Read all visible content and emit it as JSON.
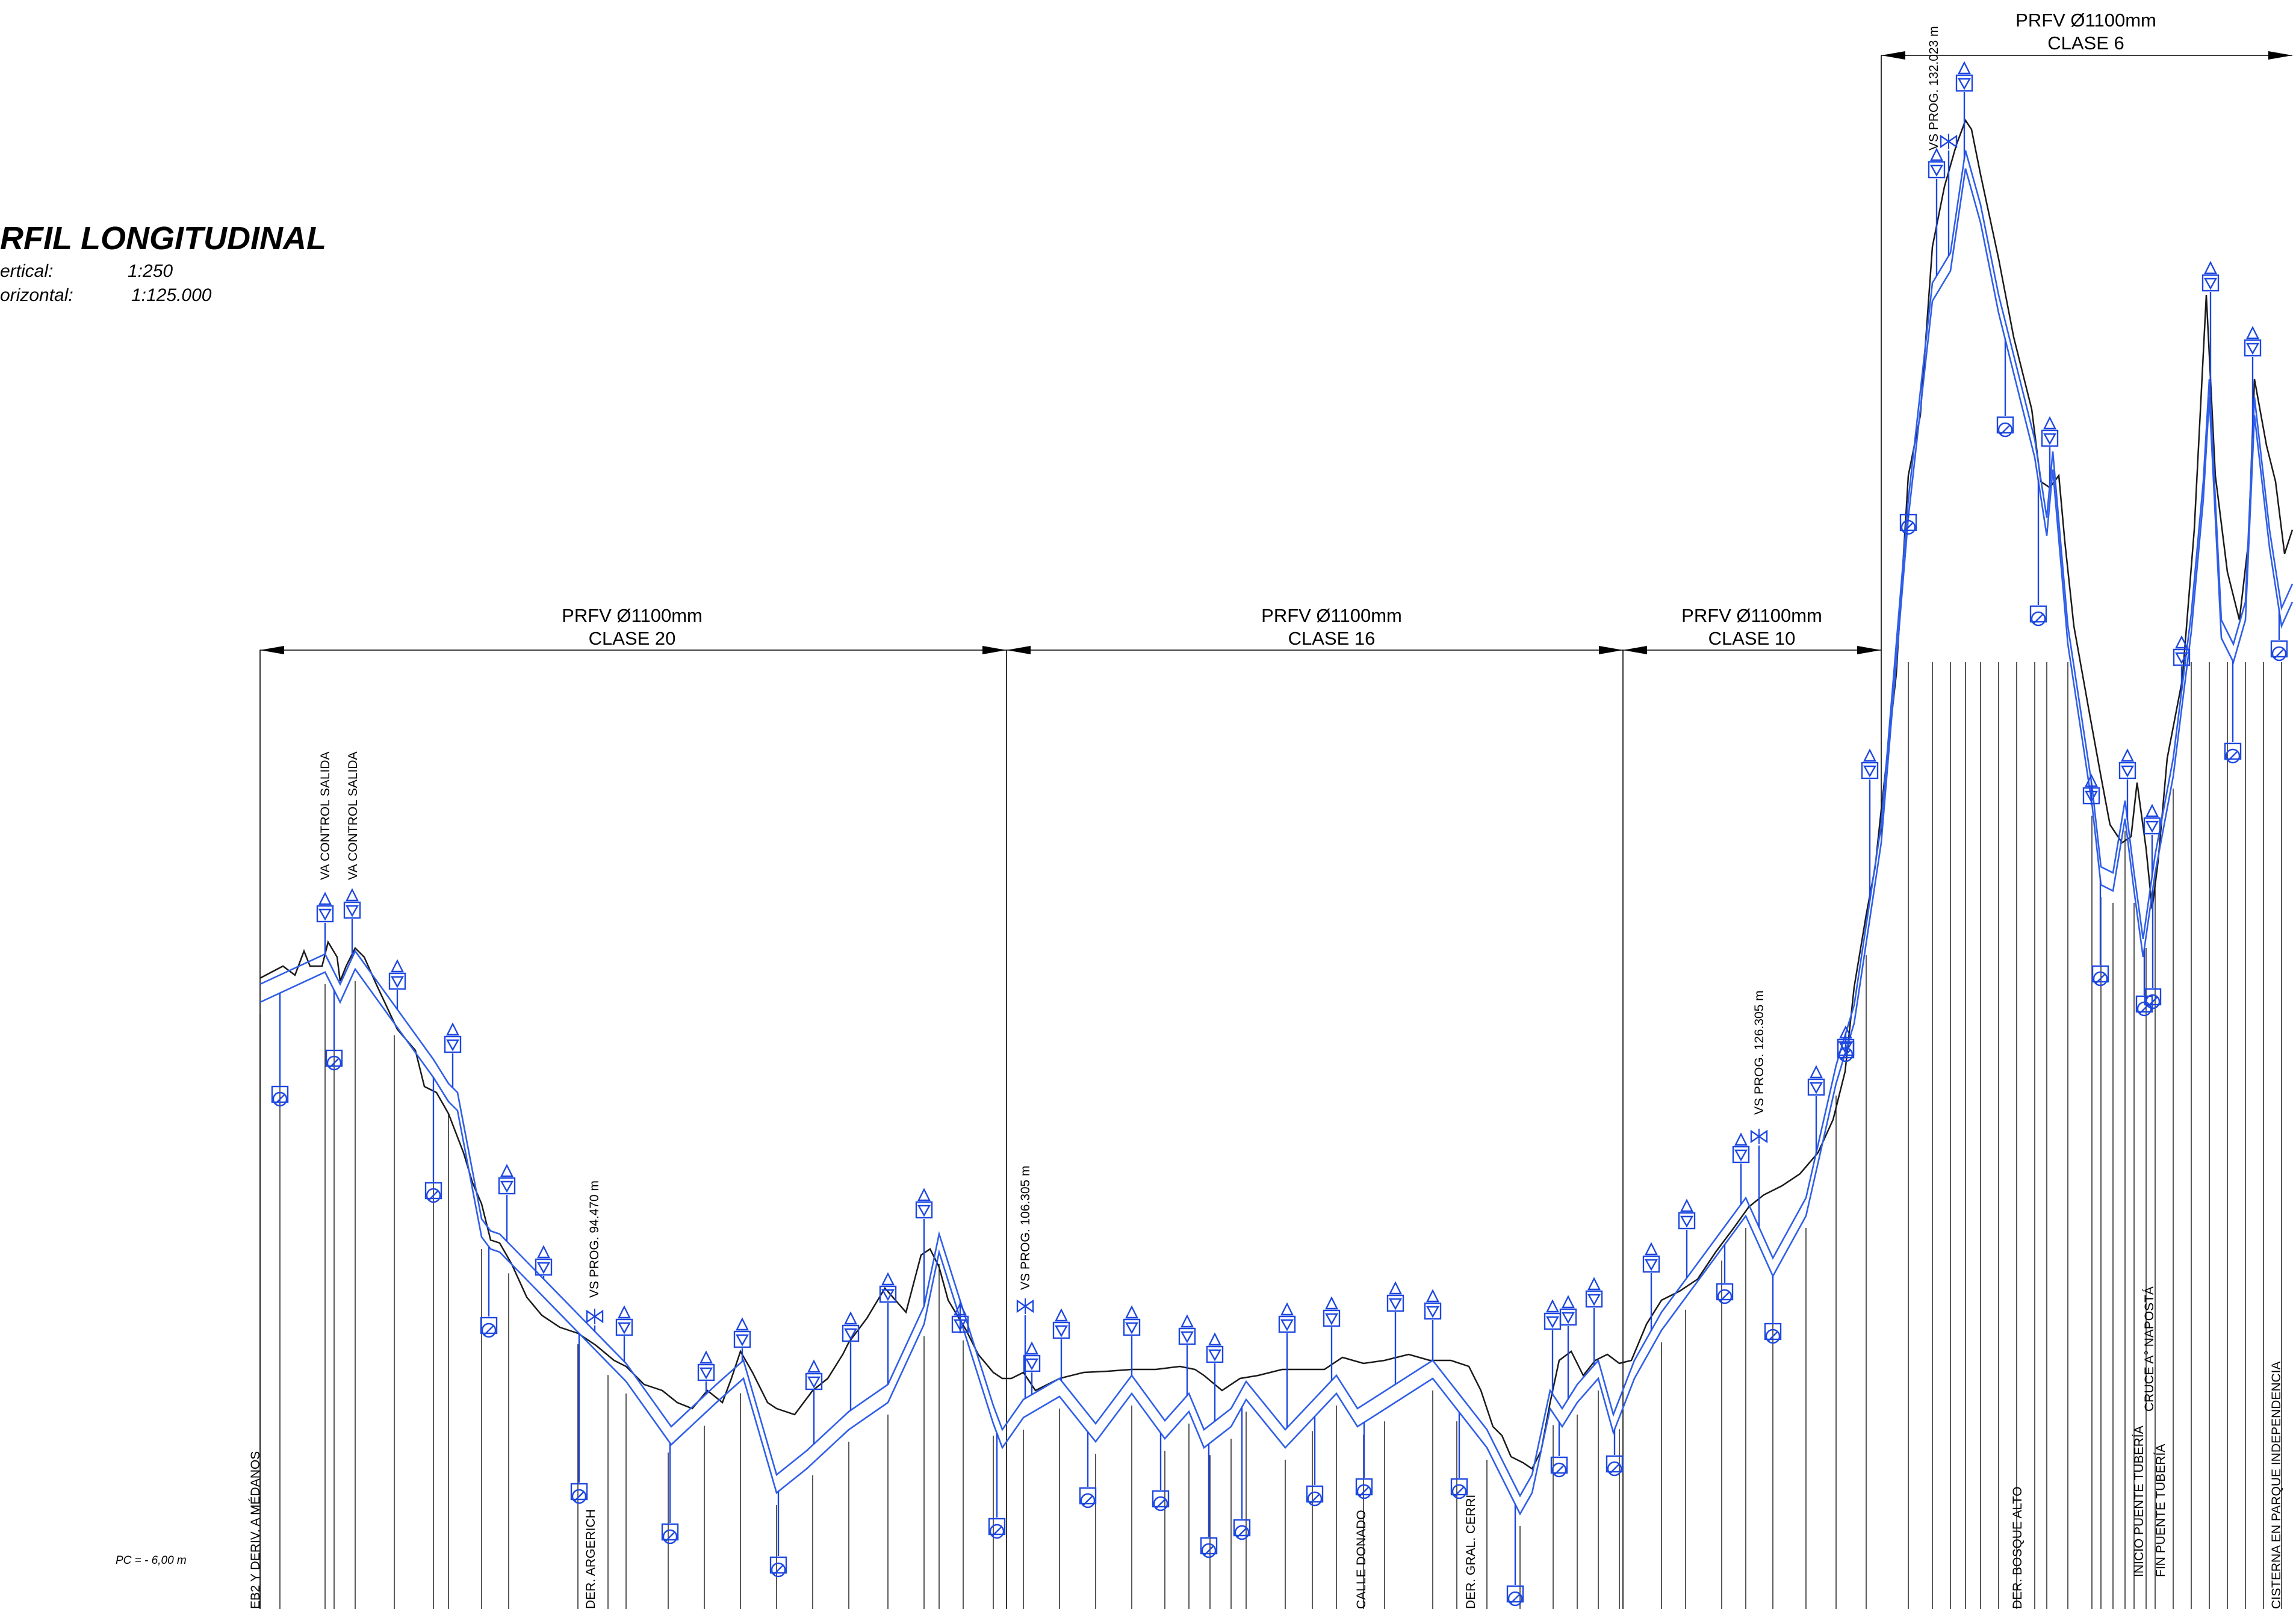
{
  "title": "RFIL LONGITUDINAL",
  "scale": {
    "vertical_label": "ertical:",
    "vertical_value": "1:250",
    "horizontal_label": "orizontal:",
    "horizontal_value": "1:125.000"
  },
  "pc_label": "PC = - 6,00 m",
  "sections": [
    {
      "line1": "PRFV Ø1100mm",
      "line2": "CLASE 20"
    },
    {
      "line1": "PRFV Ø1100mm",
      "line2": "CLASE 16"
    },
    {
      "line1": "PRFV Ø1100mm",
      "line2": "CLASE 10"
    },
    {
      "line1": "PRFV Ø1100mm",
      "line2": "CLASE 6"
    }
  ],
  "labels": [
    {
      "text": "VA CONTROL SALIDA"
    },
    {
      "text": "VA CONTROL SALIDA"
    },
    {
      "text": "VS PROG. 94.470 m"
    },
    {
      "text": "VS PROG. 106.305 m"
    },
    {
      "text": "VS PROG. 126.305 m"
    },
    {
      "text": "VS PROG. 132.023 m"
    },
    {
      "text": "EB2 Y DERIV. A MÉDANOS"
    },
    {
      "text": "DER. ARGERICH"
    },
    {
      "text": "CALLE DONADO"
    },
    {
      "text": "DER. GRAL. CERRI"
    },
    {
      "text": "DER. BOSQUE ALTO"
    },
    {
      "text": "INICIO PUENTE TUBERÍA"
    },
    {
      "text": "CRUCE A° NAPOSTÁ"
    },
    {
      "text": "FIN PUENTE TUBERÍA"
    },
    {
      "text": "CISTERNA EN PARQUE INDEPENDENCIA"
    }
  ],
  "colors": {
    "pipe": "#2f5ee8",
    "valve": "#1d47e0",
    "terrain": "#1a1a1a"
  }
}
